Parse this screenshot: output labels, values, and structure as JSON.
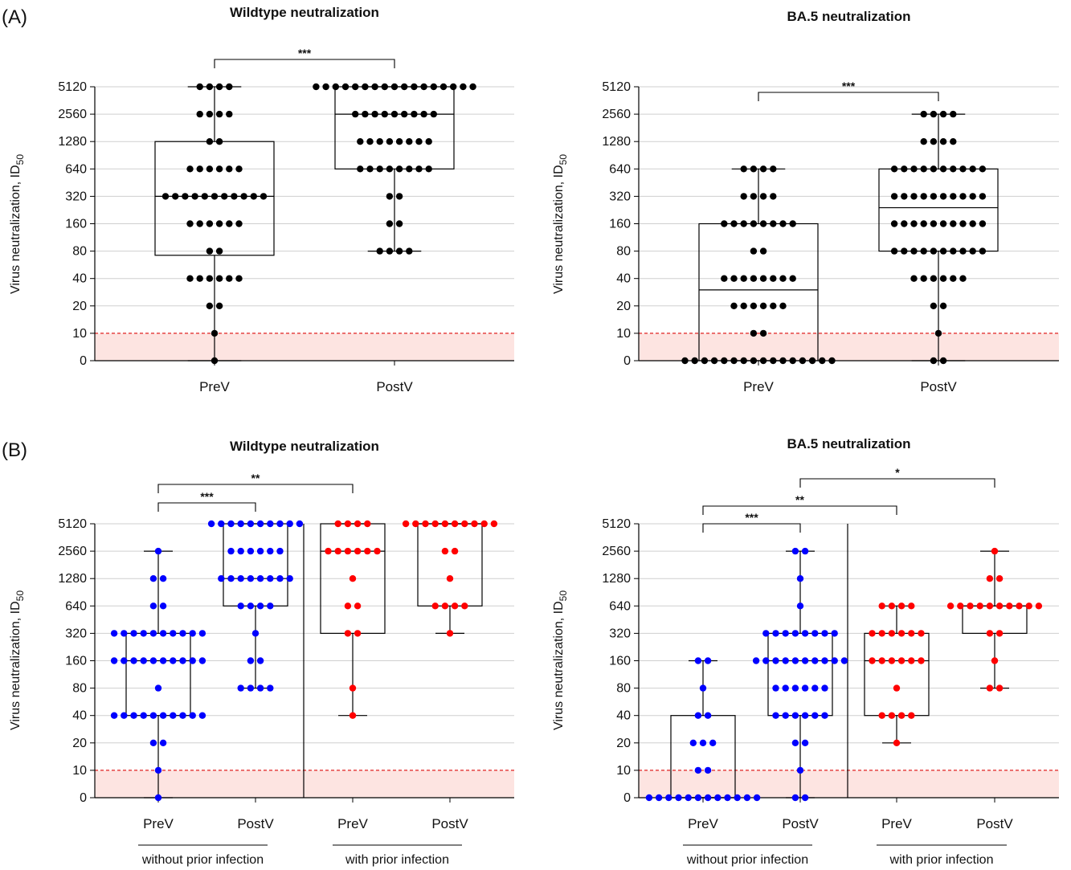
{
  "panel_labels": [
    "(A)",
    "(B)"
  ],
  "chart_data": [
    {
      "type": "box",
      "title": "Wildtype neutralization",
      "ylabel": "Virus neutralization, ID",
      "ylabel_sub": "50",
      "yscale": "log2",
      "yticks": [
        "0",
        "10",
        "20",
        "40",
        "80",
        "160",
        "320",
        "640",
        "1280",
        "2560",
        "5120"
      ],
      "threshold": 10,
      "categories": [
        "PreV",
        "PostV"
      ],
      "groups": [],
      "series": [
        {
          "name": "PreV",
          "color": "#000000",
          "box": {
            "min": 0,
            "q1": 72,
            "median": 320,
            "q3": 1280,
            "max": 5120
          },
          "points": [
            [
              5120,
              4
            ],
            [
              2560,
              4
            ],
            [
              1280,
              2
            ],
            [
              640,
              6
            ],
            [
              320,
              11
            ],
            [
              160,
              6
            ],
            [
              80,
              2
            ],
            [
              40,
              6
            ],
            [
              20,
              2
            ],
            [
              10,
              1
            ],
            [
              0,
              1
            ]
          ]
        },
        {
          "name": "PostV",
          "color": "#000000",
          "box": {
            "min": 80,
            "q1": 640,
            "median": 2560,
            "q3": 5120,
            "max": 5120
          },
          "points": [
            [
              5120,
              17
            ],
            [
              2560,
              9
            ],
            [
              1280,
              8
            ],
            [
              640,
              8
            ],
            [
              320,
              2
            ],
            [
              160,
              2
            ],
            [
              80,
              4
            ]
          ]
        }
      ],
      "significance": [
        {
          "from": 0,
          "to": 1,
          "label": "***"
        }
      ]
    },
    {
      "type": "box",
      "title": "BA.5 neutralization",
      "ylabel": "Virus neutralization, ID",
      "ylabel_sub": "50",
      "yscale": "log2",
      "yticks": [
        "0",
        "10",
        "20",
        "40",
        "80",
        "160",
        "320",
        "640",
        "1280",
        "2560",
        "5120"
      ],
      "threshold": 10,
      "categories": [
        "PreV",
        "PostV"
      ],
      "groups": [],
      "series": [
        {
          "name": "PreV",
          "color": "#000000",
          "box": {
            "min": 0,
            "q1": 0,
            "median": 30,
            "q3": 160,
            "max": 640
          },
          "points": [
            [
              640,
              4
            ],
            [
              320,
              4
            ],
            [
              160,
              8
            ],
            [
              80,
              2
            ],
            [
              40,
              8
            ],
            [
              20,
              6
            ],
            [
              10,
              2
            ],
            [
              0,
              16
            ]
          ]
        },
        {
          "name": "PostV",
          "color": "#000000",
          "box": {
            "min": 0,
            "q1": 80,
            "median": 240,
            "q3": 640,
            "max": 2560
          },
          "points": [
            [
              2560,
              4
            ],
            [
              1280,
              4
            ],
            [
              640,
              10
            ],
            [
              320,
              10
            ],
            [
              160,
              10
            ],
            [
              80,
              10
            ],
            [
              40,
              6
            ],
            [
              20,
              2
            ],
            [
              10,
              1
            ],
            [
              0,
              2
            ]
          ]
        }
      ],
      "significance": [
        {
          "from": 0,
          "to": 1,
          "label": "***"
        }
      ]
    },
    {
      "type": "box",
      "title": "Wildtype neutralization",
      "ylabel": "Virus neutralization, ID",
      "ylabel_sub": "50",
      "yscale": "log2",
      "yticks": [
        "0",
        "10",
        "20",
        "40",
        "80",
        "160",
        "320",
        "640",
        "1280",
        "2560",
        "5120"
      ],
      "threshold": 10,
      "categories": [
        "PreV",
        "PostV",
        "PreV",
        "PostV"
      ],
      "groups": [
        {
          "label": "without prior infection",
          "from": 0,
          "to": 1
        },
        {
          "label": "with prior infection",
          "from": 2,
          "to": 3
        }
      ],
      "series": [
        {
          "name": "PreV",
          "color": "#0000ff",
          "box": {
            "min": 0,
            "q1": 40,
            "median": 160,
            "q3": 320,
            "max": 2560
          },
          "points": [
            [
              2560,
              1
            ],
            [
              1280,
              2
            ],
            [
              640,
              2
            ],
            [
              320,
              10
            ],
            [
              160,
              10
            ],
            [
              80,
              1
            ],
            [
              40,
              10
            ],
            [
              20,
              2
            ],
            [
              10,
              1
            ],
            [
              0,
              1
            ]
          ]
        },
        {
          "name": "PostV",
          "color": "#0000ff",
          "box": {
            "min": 80,
            "q1": 640,
            "median": 1280,
            "q3": 5120,
            "max": 5120
          },
          "points": [
            [
              5120,
              10
            ],
            [
              2560,
              6
            ],
            [
              1280,
              8
            ],
            [
              640,
              4
            ],
            [
              320,
              1
            ],
            [
              160,
              2
            ],
            [
              80,
              4
            ]
          ]
        },
        {
          "name": "PreV",
          "color": "#ff0000",
          "box": {
            "min": 40,
            "q1": 320,
            "median": 2560,
            "q3": 5120,
            "max": 5120
          },
          "points": [
            [
              5120,
              4
            ],
            [
              2560,
              6
            ],
            [
              1280,
              1
            ],
            [
              640,
              2
            ],
            [
              320,
              2
            ],
            [
              80,
              1
            ],
            [
              40,
              1
            ]
          ]
        },
        {
          "name": "PostV",
          "color": "#ff0000",
          "box": {
            "min": 320,
            "q1": 640,
            "median": 5120,
            "q3": 5120,
            "max": 5120
          },
          "points": [
            [
              5120,
              10
            ],
            [
              2560,
              2
            ],
            [
              1280,
              1
            ],
            [
              640,
              4
            ],
            [
              320,
              1
            ]
          ]
        }
      ],
      "significance": [
        {
          "from": 0,
          "to": 1,
          "label": "***"
        },
        {
          "from": 0,
          "to": 2,
          "label": "**"
        }
      ]
    },
    {
      "type": "box",
      "title": "BA.5 neutralization",
      "ylabel": "Virus neutralization, ID",
      "ylabel_sub": "50",
      "yscale": "log2",
      "yticks": [
        "0",
        "10",
        "20",
        "40",
        "80",
        "160",
        "320",
        "640",
        "1280",
        "2560",
        "5120"
      ],
      "threshold": 10,
      "categories": [
        "PreV",
        "PostV",
        "PreV",
        "PostV"
      ],
      "groups": [
        {
          "label": "without prior infection",
          "from": 0,
          "to": 1
        },
        {
          "label": "with prior infection",
          "from": 2,
          "to": 3
        }
      ],
      "series": [
        {
          "name": "PreV",
          "color": "#0000ff",
          "box": {
            "min": 0,
            "q1": 0,
            "median": 0,
            "q3": 40,
            "max": 160
          },
          "points": [
            [
              160,
              2
            ],
            [
              80,
              1
            ],
            [
              40,
              2
            ],
            [
              20,
              3
            ],
            [
              10,
              2
            ],
            [
              0,
              12
            ]
          ]
        },
        {
          "name": "PostV",
          "color": "#0000ff",
          "box": {
            "min": 0,
            "q1": 40,
            "median": 160,
            "q3": 320,
            "max": 2560
          },
          "points": [
            [
              2560,
              2
            ],
            [
              1280,
              1
            ],
            [
              640,
              1
            ],
            [
              320,
              8
            ],
            [
              160,
              10
            ],
            [
              80,
              6
            ],
            [
              40,
              6
            ],
            [
              20,
              2
            ],
            [
              10,
              1
            ],
            [
              0,
              2
            ]
          ]
        },
        {
          "name": "PreV",
          "color": "#ff0000",
          "box": {
            "min": 20,
            "q1": 40,
            "median": 160,
            "q3": 320,
            "max": 640
          },
          "points": [
            [
              640,
              4
            ],
            [
              320,
              6
            ],
            [
              160,
              6
            ],
            [
              80,
              1
            ],
            [
              40,
              4
            ],
            [
              20,
              1
            ]
          ]
        },
        {
          "name": "PostV",
          "color": "#ff0000",
          "box": {
            "min": 80,
            "q1": 320,
            "median": 640,
            "q3": 640,
            "max": 2560
          },
          "points": [
            [
              2560,
              1
            ],
            [
              1280,
              2
            ],
            [
              640,
              10
            ],
            [
              320,
              2
            ],
            [
              160,
              1
            ],
            [
              80,
              2
            ]
          ]
        }
      ],
      "significance": [
        {
          "from": 0,
          "to": 1,
          "label": "***"
        },
        {
          "from": 0,
          "to": 2,
          "label": "**"
        },
        {
          "from": 1,
          "to": 3,
          "label": "*"
        }
      ]
    }
  ]
}
